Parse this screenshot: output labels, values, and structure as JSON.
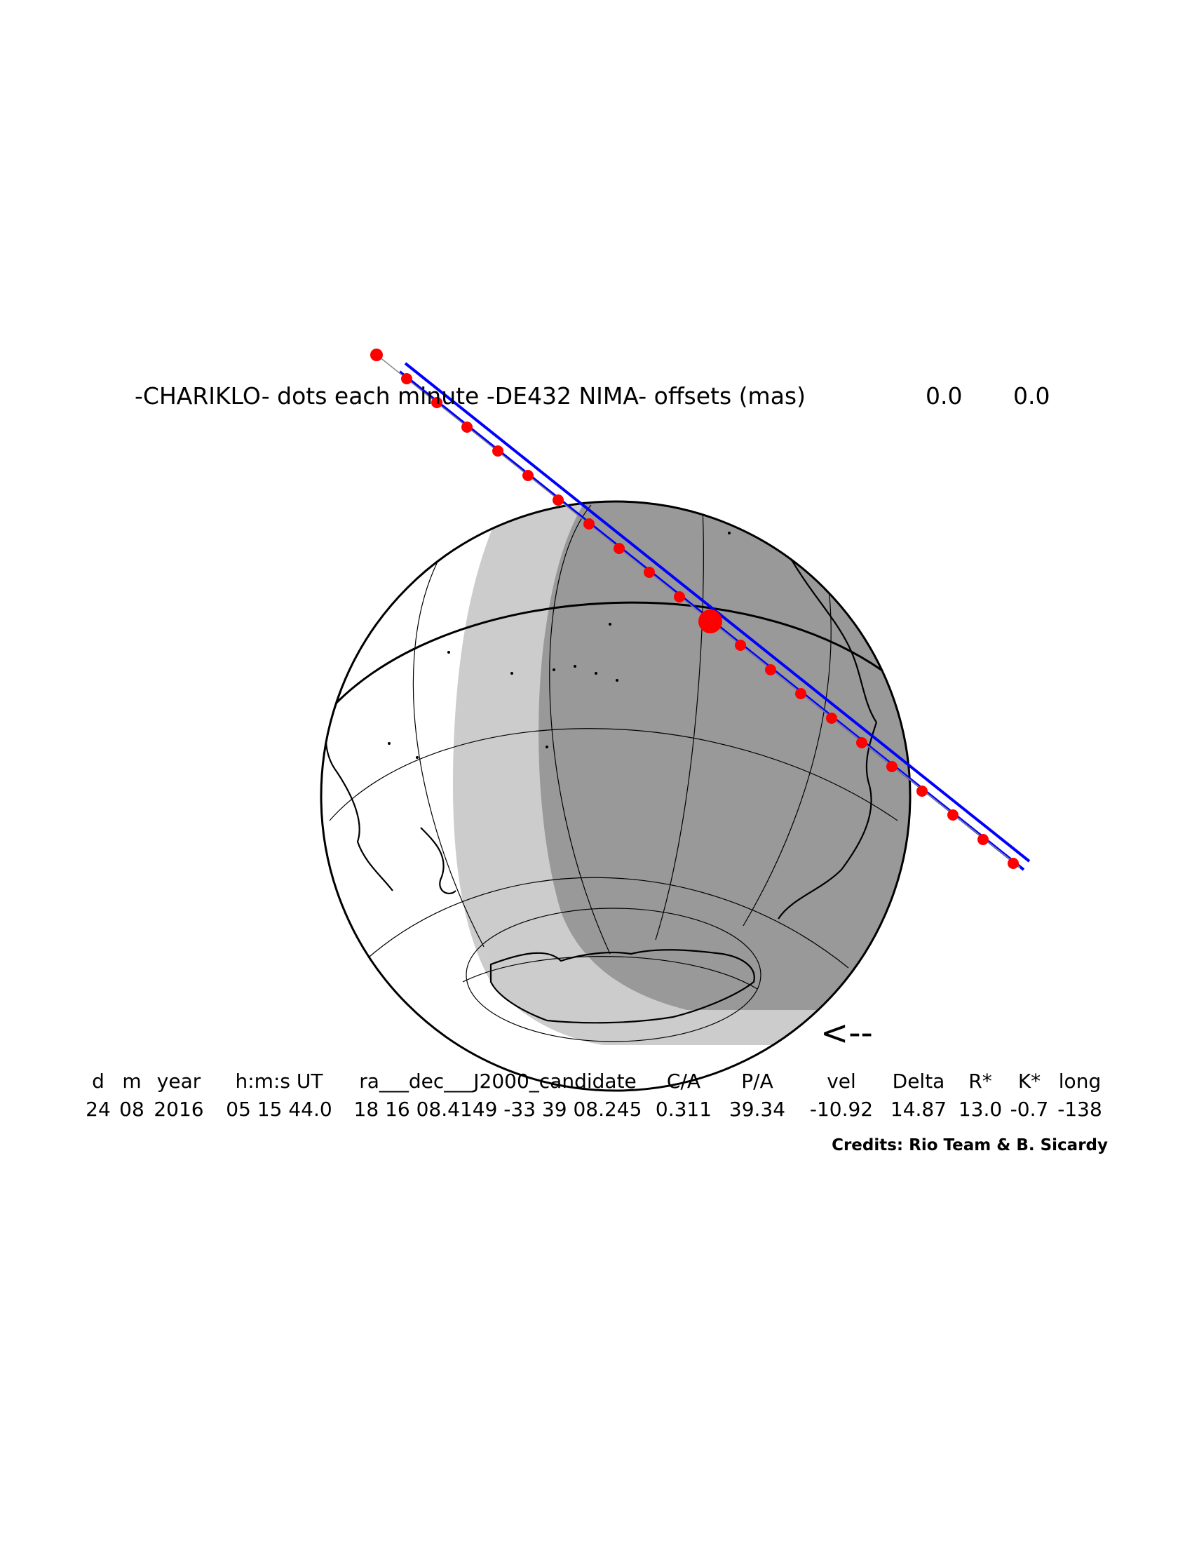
{
  "header": {
    "title": "-CHARIKLO- dots each minute -DE432 NIMA- offsets (mas)",
    "offset_ra": "0.0",
    "offset_dec": "0.0"
  },
  "direction_arrow": "<--",
  "table": {
    "headers": [
      "d",
      "m",
      "year",
      "h:m:s UT",
      "ra___dec___J2000_candidate",
      "C/A",
      "P/A",
      "vel",
      "Delta",
      "R*",
      "K*",
      "long"
    ],
    "values": [
      "24",
      "08",
      "2016",
      "05 15 44.0",
      "18 16 08.4149 -33 39 08.245",
      "0.311",
      "39.34",
      "-10.92",
      "14.87",
      "13.0",
      "-0.7",
      "-138"
    ]
  },
  "credits": "Credits: Rio Team & B. Sicardy",
  "colors": {
    "path_dots": "#ff0000",
    "path_limits": "#0000ff",
    "night_dark": "#999999",
    "twilight": "#cccccc",
    "outline": "#000000"
  }
}
